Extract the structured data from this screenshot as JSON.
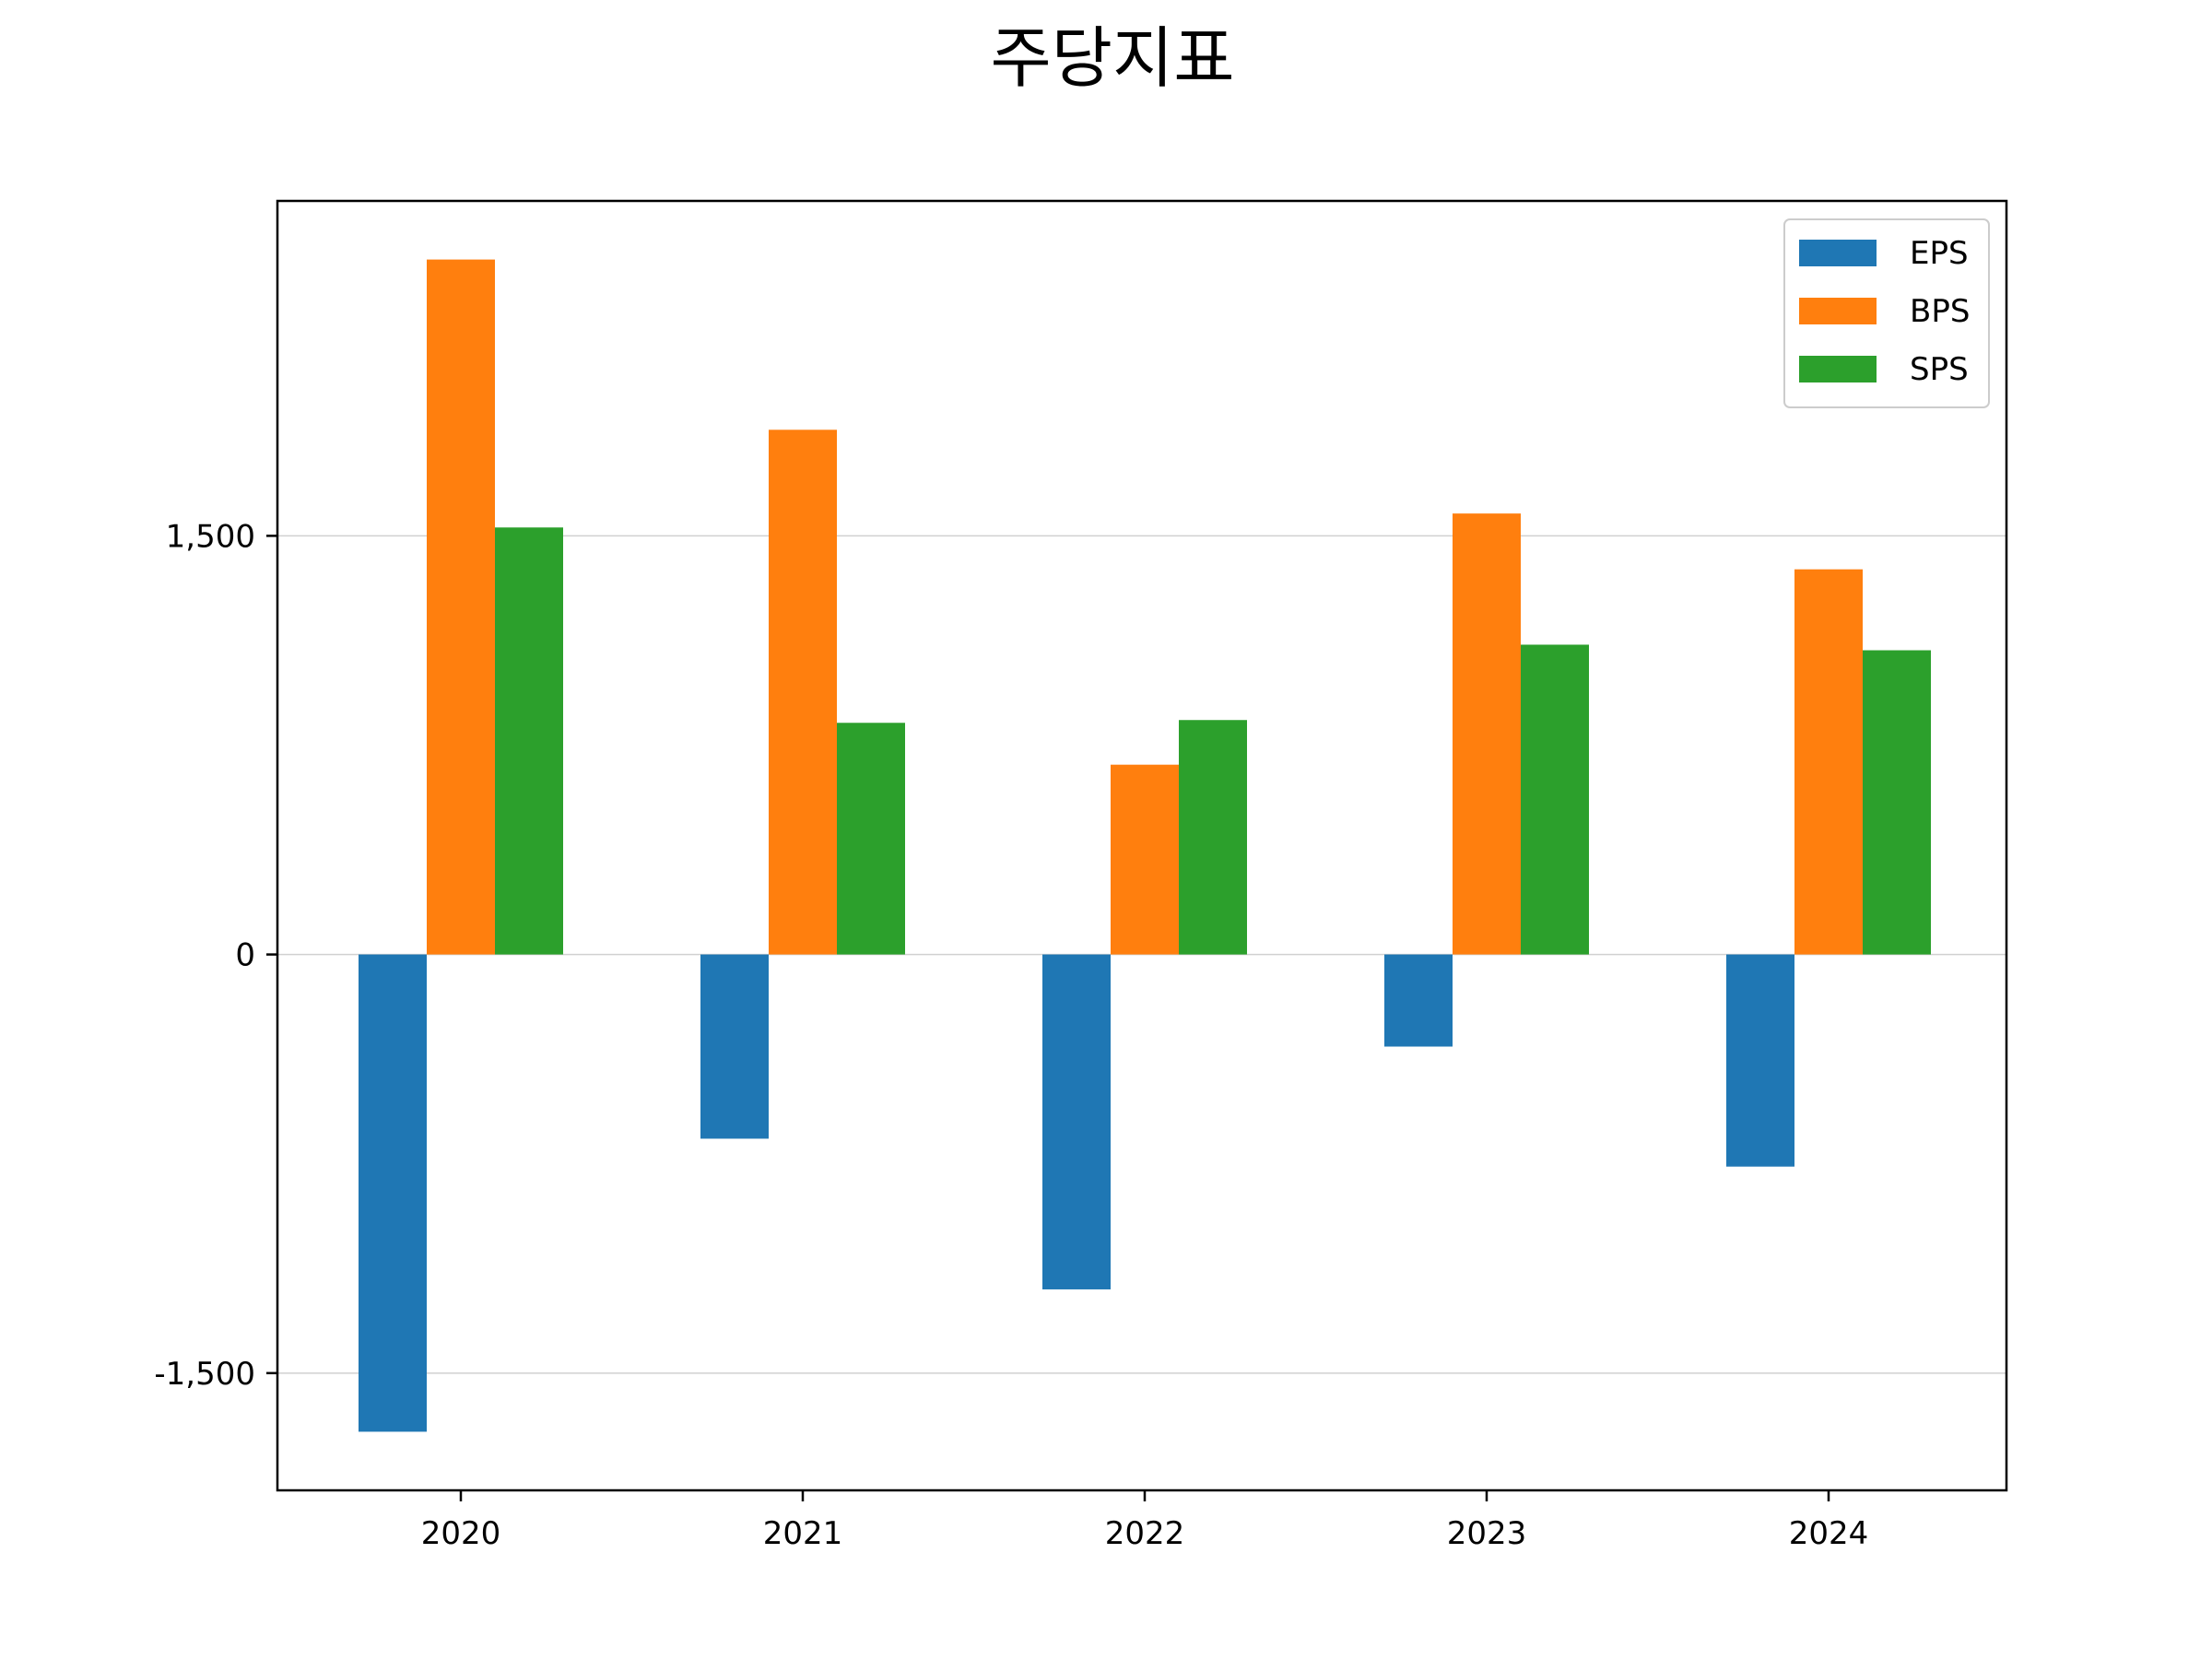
{
  "chart_data": {
    "type": "bar",
    "title": "주당지표",
    "xlabel": "",
    "ylabel": "",
    "categories": [
      "2020",
      "2021",
      "2022",
      "2023",
      "2024"
    ],
    "series": [
      {
        "name": "EPS",
        "color": "#1f77b4",
        "values": [
          -1710,
          -660,
          -1200,
          -330,
          -760
        ]
      },
      {
        "name": "BPS",
        "color": "#ff7f0e",
        "values": [
          2490,
          1880,
          680,
          1580,
          1380
        ]
      },
      {
        "name": "SPS",
        "color": "#2ca02c",
        "values": [
          1530,
          830,
          840,
          1110,
          1090
        ]
      }
    ],
    "yticks": [
      -1500,
      0,
      1500
    ],
    "ytick_labels": [
      "-1,500",
      "0",
      "1,500"
    ],
    "ylim": [
      -1920,
      2700
    ],
    "grid": "horizontal",
    "legend_position": "top-right"
  }
}
